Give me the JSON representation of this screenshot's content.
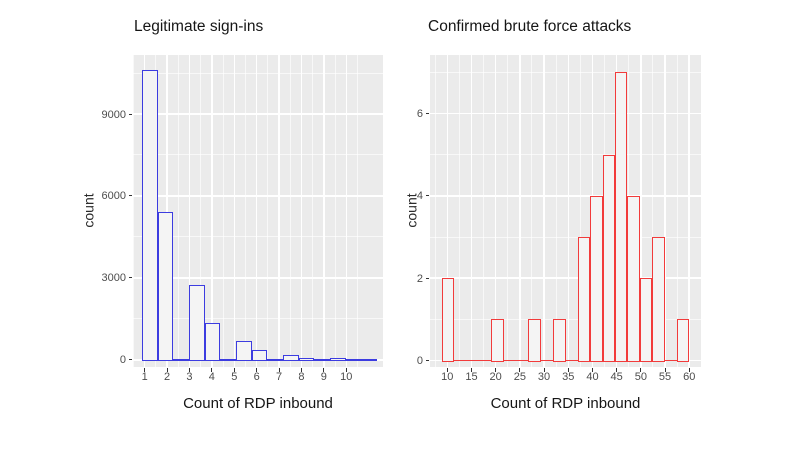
{
  "page": {
    "background": "#FFFFFF",
    "description": "Two ggplot-style histograms comparing RDP inbound connection counts"
  },
  "chart_data": [
    {
      "type": "bar",
      "subtype": "histogram",
      "title": "Legitimate sign-ins",
      "xlabel": "Count of RDP inbound",
      "ylabel": "count",
      "legend": "none",
      "grid": true,
      "panel_bg": "#EBEBEB",
      "series_color": "#3C3CE0",
      "bar_fill": "#F4F4F4",
      "xlim": [
        0.48,
        11.64
      ],
      "ylim": [
        -260,
        11160
      ],
      "x_ticks": [
        1,
        2,
        3,
        4,
        5,
        6,
        7,
        8,
        9,
        10
      ],
      "y_ticks": [
        0,
        3000,
        6000,
        9000
      ],
      "x_minor_step": 1,
      "y_minor_step": 3000,
      "bins": [
        {
          "x0": 0.88,
          "x1": 1.58,
          "count": 10600
        },
        {
          "x0": 1.58,
          "x1": 2.28,
          "count": 5400
        },
        {
          "x0": 2.28,
          "x1": 2.98,
          "count": 0
        },
        {
          "x0": 2.98,
          "x1": 3.68,
          "count": 2750
        },
        {
          "x0": 3.68,
          "x1": 4.38,
          "count": 1350
        },
        {
          "x0": 4.38,
          "x1": 5.08,
          "count": 0
        },
        {
          "x0": 5.08,
          "x1": 5.78,
          "count": 700
        },
        {
          "x0": 5.78,
          "x1": 6.48,
          "count": 370
        },
        {
          "x0": 6.48,
          "x1": 7.18,
          "count": 0
        },
        {
          "x0": 7.18,
          "x1": 7.88,
          "count": 180
        },
        {
          "x0": 7.88,
          "x1": 8.58,
          "count": 80
        },
        {
          "x0": 8.58,
          "x1": 9.28,
          "count": 0
        },
        {
          "x0": 9.28,
          "x1": 9.98,
          "count": 60
        },
        {
          "x0": 9.98,
          "x1": 10.68,
          "count": 0
        },
        {
          "x0": 10.68,
          "x1": 11.38,
          "count": 50
        }
      ]
    },
    {
      "type": "bar",
      "subtype": "histogram",
      "title": "Confirmed brute force attacks",
      "xlabel": "Count of RDP inbound",
      "ylabel": "count",
      "legend": "none",
      "grid": true,
      "panel_bg": "#EBEBEB",
      "series_color": "#F23B3B",
      "bar_fill": "#F4F4F4",
      "xlim": [
        6.43,
        62.43
      ],
      "ylim": [
        -0.155,
        7.42
      ],
      "x_ticks": [
        10,
        15,
        20,
        25,
        30,
        35,
        40,
        45,
        50,
        55,
        60
      ],
      "y_ticks": [
        0,
        2,
        4,
        6
      ],
      "x_minor_step": 5,
      "y_minor_step": 2,
      "bins": [
        {
          "x0": 8.84,
          "x1": 11.4,
          "count": 2
        },
        {
          "x0": 11.4,
          "x1": 13.96,
          "count": 0
        },
        {
          "x0": 13.96,
          "x1": 16.52,
          "count": 0
        },
        {
          "x0": 16.52,
          "x1": 19.08,
          "count": 0
        },
        {
          "x0": 19.08,
          "x1": 21.64,
          "count": 1
        },
        {
          "x0": 21.64,
          "x1": 24.2,
          "count": 0
        },
        {
          "x0": 24.2,
          "x1": 26.76,
          "count": 0
        },
        {
          "x0": 26.76,
          "x1": 29.32,
          "count": 1
        },
        {
          "x0": 29.32,
          "x1": 31.88,
          "count": 0
        },
        {
          "x0": 31.88,
          "x1": 34.44,
          "count": 1
        },
        {
          "x0": 34.44,
          "x1": 37.0,
          "count": 0
        },
        {
          "x0": 37.0,
          "x1": 39.56,
          "count": 3
        },
        {
          "x0": 39.56,
          "x1": 42.12,
          "count": 4
        },
        {
          "x0": 42.12,
          "x1": 44.68,
          "count": 5
        },
        {
          "x0": 44.68,
          "x1": 47.24,
          "count": 7
        },
        {
          "x0": 47.24,
          "x1": 49.8,
          "count": 4
        },
        {
          "x0": 49.8,
          "x1": 52.36,
          "count": 2
        },
        {
          "x0": 52.36,
          "x1": 54.92,
          "count": 3
        },
        {
          "x0": 54.92,
          "x1": 57.48,
          "count": 0
        },
        {
          "x0": 57.48,
          "x1": 60.04,
          "count": 1
        }
      ]
    }
  ]
}
